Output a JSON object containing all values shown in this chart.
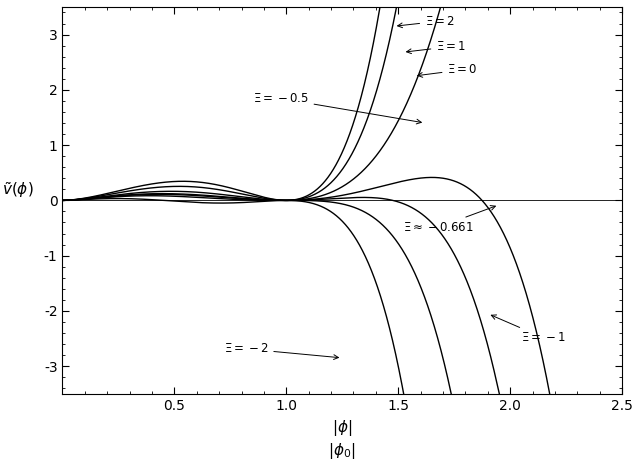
{
  "xi_values": [
    2,
    1,
    0,
    -0.5,
    -0.661,
    -1,
    -2
  ],
  "xi_labels": [
    "$\\Xi=2$",
    "$\\Xi=1$",
    "$\\Xi=0$",
    "$\\Xi=-0.5$",
    "$\\Xi\\approx-0.661$",
    "$\\Xi=-1$",
    "$\\Xi=-2$"
  ],
  "xlim": [
    0,
    2.5
  ],
  "ylim": [
    -3.5,
    3.5
  ],
  "xticks": [
    0.5,
    1.0,
    1.5,
    2.0,
    2.5
  ],
  "yticks": [
    -3,
    -2,
    -1,
    0,
    1,
    2,
    3
  ],
  "background_color": "#ffffff",
  "line_color": "#000000",
  "figsize": [
    6.4,
    4.68
  ],
  "dpi": 100
}
